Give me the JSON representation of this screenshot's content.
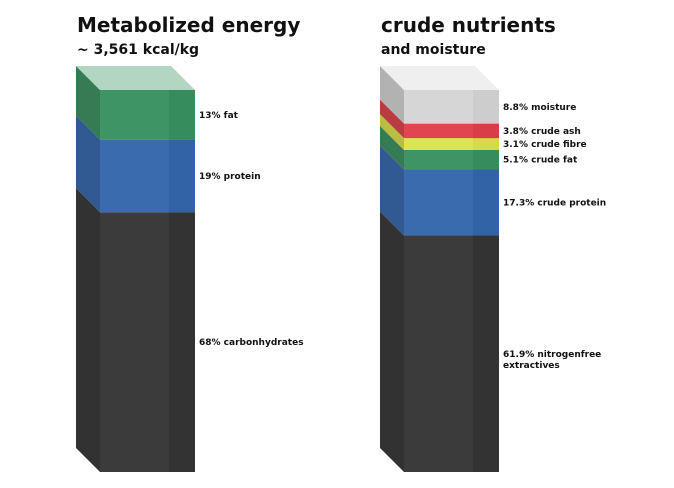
{
  "chart_data": [
    {
      "type": "stacked-bar-3d",
      "title": "Metabolized energy",
      "subtitle": "~ 3,561 kcal/kg",
      "unit": "%",
      "segments": [
        {
          "name": "carbonhydrates",
          "value": 68,
          "label": "68% carbonhydrates",
          "color": "#2a2a2a"
        },
        {
          "name": "protein",
          "value": 19,
          "label": "19% protein",
          "color": "#2a5ea8"
        },
        {
          "name": "fat",
          "value": 13,
          "label": "13% fat",
          "color": "#2e8b57"
        }
      ]
    },
    {
      "type": "stacked-bar-3d",
      "title": "crude nutrients",
      "subtitle": "and moisture",
      "unit": "%",
      "segments": [
        {
          "name": "nitrogenfree-extractives",
          "value": 61.9,
          "label": [
            "61.9% nitrogenfree",
            "extractives"
          ],
          "color": "#2a2a2a"
        },
        {
          "name": "crude-protein",
          "value": 17.3,
          "label": "17.3% crude protein",
          "color": "#2a5ea8"
        },
        {
          "name": "crude-fat",
          "value": 5.1,
          "label": "5.1% crude fat",
          "color": "#2e8b57"
        },
        {
          "name": "crude-fibre",
          "value": 3.1,
          "label": "3.1% crude fibre",
          "color": "#dde040"
        },
        {
          "name": "crude-ash",
          "value": 3.8,
          "label": "3.8% crude ash",
          "color": "#dd3640"
        },
        {
          "name": "moisture",
          "value": 8.8,
          "label": "8.8% moisture",
          "color": "#d2d2d2"
        }
      ]
    }
  ]
}
